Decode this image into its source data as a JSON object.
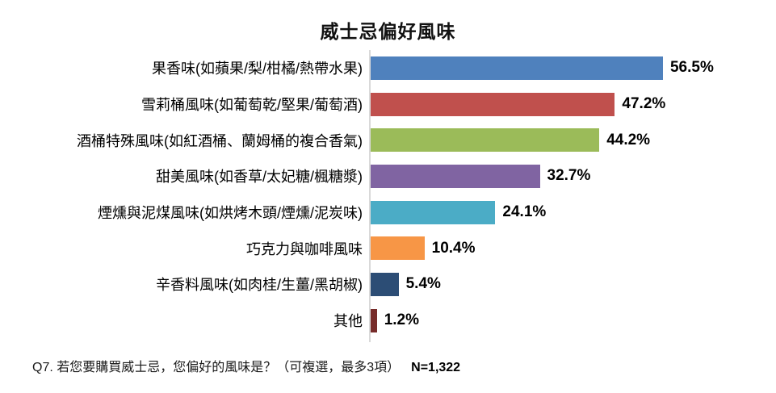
{
  "chart_data": {
    "type": "bar",
    "orientation": "horizontal",
    "title": "威士忌偏好風味",
    "categories": [
      "果香味(如蘋果/梨/柑橘/熱帶水果)",
      "雪莉桶風味(如葡萄乾/堅果/葡萄酒)",
      "酒桶特殊風味(如紅酒桶、蘭姆桶的複合香氣)",
      "甜美風味(如香草/太妃糖/楓糖漿)",
      "煙燻與泥煤風味(如烘烤木頭/煙燻/泥炭味)",
      "巧克力與咖啡風味",
      "辛香料風味(如肉桂/生薑/黑胡椒)",
      "其他"
    ],
    "values": [
      56.5,
      47.2,
      44.2,
      32.7,
      24.1,
      10.4,
      5.4,
      1.2
    ],
    "value_labels": [
      "56.5%",
      "47.2%",
      "44.2%",
      "32.7%",
      "24.1%",
      "10.4%",
      "5.4%",
      "1.2%"
    ],
    "bar_colors": [
      "#4F81BD",
      "#C0504D",
      "#9BBB59",
      "#8064A2",
      "#4BACC6",
      "#F79646",
      "#2C4D75",
      "#772C2A"
    ],
    "xlim": [
      0,
      60
    ],
    "xlabel": "",
    "ylabel": "",
    "grid": false,
    "legend": false,
    "axis_line_color": "#D9D9D9",
    "footnote": "Q7. 若您要購買威士忌，您偏好的風味是？（可複選，最多3項）",
    "sample_size": "N=1,322"
  }
}
